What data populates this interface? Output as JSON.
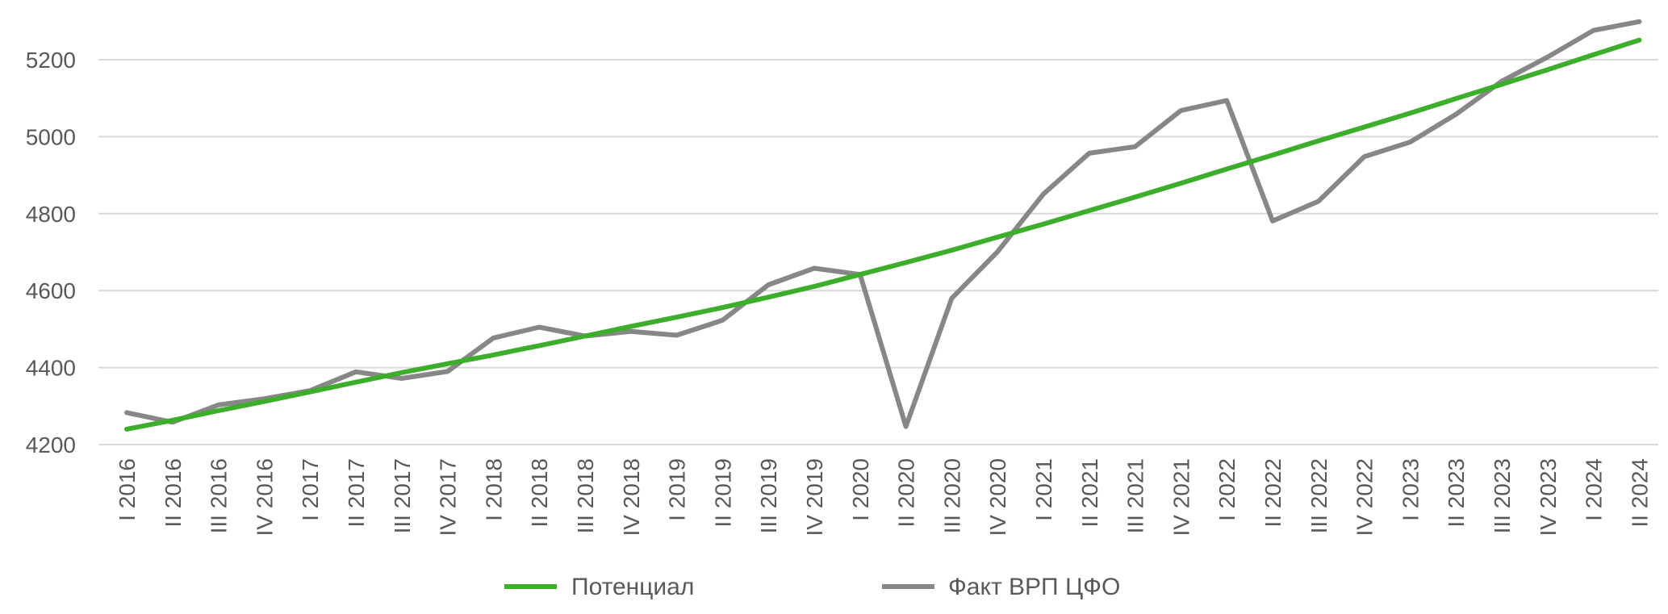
{
  "chart_data": {
    "type": "line",
    "title": "",
    "xlabel": "",
    "ylabel": "",
    "ylim": [
      4200,
      5300
    ],
    "yticks": [
      4200,
      4400,
      4600,
      4800,
      5000,
      5200
    ],
    "grid": true,
    "legend_position": "bottom",
    "categories": [
      "I 2016",
      "II 2016",
      "III 2016",
      "IV 2016",
      "I 2017",
      "II 2017",
      "III 2017",
      "IV 2017",
      "I 2018",
      "II 2018",
      "III 2018",
      "IV 2018",
      "I 2019",
      "II 2019",
      "III 2019",
      "IV 2019",
      "I 2020",
      "II 2020",
      "III 2020",
      "IV 2020",
      "I 2021",
      "II 2021",
      "III 2021",
      "IV 2021",
      "I 2022",
      "II 2022",
      "III 2022",
      "IV 2022",
      "I 2023",
      "II 2023",
      "III 2023",
      "IV 2023",
      "I 2024",
      "II 2024"
    ],
    "series": [
      {
        "name": "Потенциал",
        "color": "#3dae2b",
        "values": [
          4240,
          4263,
          4288,
          4312,
          4337,
          4362,
          4387,
          4410,
          4433,
          4457,
          4482,
          4507,
          4531,
          4556,
          4583,
          4611,
          4642,
          4673,
          4705,
          4739,
          4773,
          4808,
          4843,
          4879,
          4916,
          4952,
          4989,
          5025,
          5061,
          5099,
          5136,
          5174,
          5213,
          5251
        ]
      },
      {
        "name": "Факт ВРП ЦФО",
        "color": "#878787",
        "values": [
          4283,
          4258,
          4303,
          4319,
          4340,
          4389,
          4372,
          4390,
          4477,
          4505,
          4482,
          4494,
          4484,
          4523,
          4615,
          4658,
          4642,
          4247,
          4580,
          4701,
          4851,
          4957,
          4974,
          5068,
          5094,
          4781,
          4832,
          4948,
          4986,
          5058,
          5144,
          5207,
          5276,
          5299
        ]
      }
    ]
  }
}
